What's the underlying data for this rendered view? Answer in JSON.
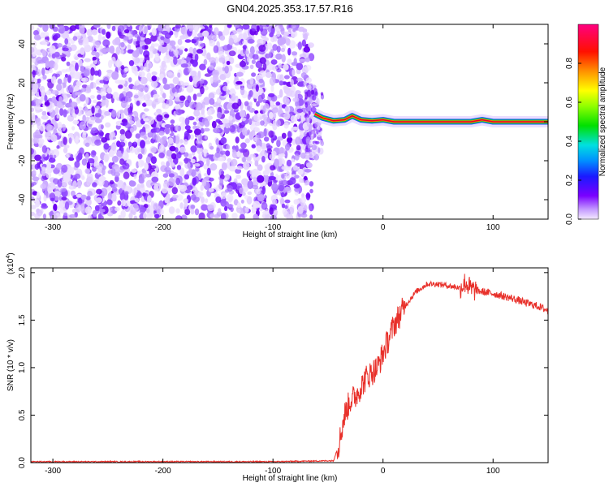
{
  "title": "GN04.2025.353.17.57.R16",
  "chart_data": [
    {
      "type": "heatmap",
      "xlabel": "Height of straight line (km)",
      "ylabel": "Frequency (Hz)",
      "xlim": [
        -320,
        150
      ],
      "ylim": [
        -50,
        50
      ],
      "xticks": [
        -300,
        -200,
        -100,
        0,
        100
      ],
      "yticks": [
        -40,
        -20,
        0,
        20,
        40
      ],
      "noise_region_x": [
        -320,
        -65
      ],
      "transition_x": [
        -70,
        -55
      ],
      "signal_line": [
        {
          "x": -62,
          "y": 4
        },
        {
          "x": -55,
          "y": 2
        },
        {
          "x": -45,
          "y": 0.5
        },
        {
          "x": -35,
          "y": 1
        },
        {
          "x": -28,
          "y": 3
        },
        {
          "x": -20,
          "y": 1
        },
        {
          "x": -10,
          "y": 0.5
        },
        {
          "x": 0,
          "y": 1
        },
        {
          "x": 10,
          "y": 0
        },
        {
          "x": 80,
          "y": 0
        },
        {
          "x": 90,
          "y": 1
        },
        {
          "x": 100,
          "y": 0
        },
        {
          "x": 150,
          "y": 0
        }
      ],
      "colorbar": {
        "label": "Normalized spectral amplitude",
        "range": [
          0,
          1
        ],
        "ticks": [
          0.0,
          0.2,
          0.4,
          0.6,
          0.8
        ]
      }
    },
    {
      "type": "line",
      "xlabel": "Height of straight line (km)",
      "ylabel": "SNR (10 * v/v)",
      "yscale_label": "(x10",
      "yscale_exp": "4",
      "yscale_close": ")",
      "xlim": [
        -320,
        150
      ],
      "ylim": [
        0,
        2.05
      ],
      "xticks": [
        -300,
        -200,
        -100,
        0,
        100
      ],
      "yticks": [
        0.0,
        0.5,
        1.0,
        1.5,
        2.0
      ],
      "color": "#e8302a",
      "series": [
        {
          "x": [
            -320,
            -100,
            -45,
            -40,
            -35,
            -30,
            -25,
            -20,
            -15,
            -10,
            -5,
            0,
            5,
            10,
            20,
            30,
            40,
            50,
            60,
            70,
            75,
            80,
            90,
            100,
            110,
            120,
            130,
            140,
            150
          ],
          "values": [
            0.01,
            0.01,
            0.02,
            0.2,
            0.5,
            0.65,
            0.7,
            0.8,
            0.9,
            0.95,
            1.0,
            1.15,
            1.3,
            1.45,
            1.65,
            1.8,
            1.88,
            1.88,
            1.86,
            1.84,
            1.9,
            1.82,
            1.8,
            1.78,
            1.75,
            1.72,
            1.68,
            1.65,
            1.6
          ]
        }
      ]
    }
  ]
}
